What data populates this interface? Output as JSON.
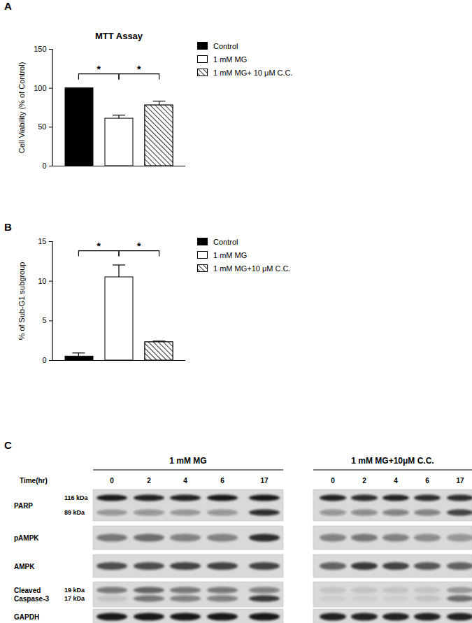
{
  "panel_labels": [
    "A",
    "B",
    "C"
  ],
  "chart_data": [
    {
      "type": "bar",
      "title": "MTT Assay",
      "ylabel": "Cell Viability (% of Control)",
      "categories": [
        "Control",
        "1 mM MG",
        "1 mM MG+ 10 μM C.C."
      ],
      "values": [
        100,
        61,
        78
      ],
      "errors": [
        0,
        4,
        5
      ],
      "colors": [
        "#000000",
        "#ffffff",
        "#ffffff"
      ],
      "ylim": [
        0,
        150
      ],
      "yticks": [
        0,
        50,
        100,
        150
      ],
      "legend": "right",
      "tick_labels": "y",
      "annotations": [
        {
          "text": "*",
          "between": [
            "Control",
            "1 mM MG"
          ]
        },
        {
          "text": "*",
          "between": [
            "1 mM MG",
            "1 mM MG+ 10 μM C.C."
          ]
        }
      ]
    },
    {
      "type": "bar",
      "ylabel": "% of Sub-G1 subgroup",
      "categories": [
        "Control",
        "1 mM MG",
        "1 mM MG+10 μM C.C."
      ],
      "values": [
        0.5,
        10.5,
        2.3
      ],
      "errors": [
        0.4,
        1.5,
        0.1
      ],
      "colors": [
        "#000000",
        "#ffffff",
        "#ffffff"
      ],
      "ylim": [
        0,
        15
      ],
      "yticks": [
        0,
        5,
        10,
        15
      ],
      "legend": "right",
      "tick_labels": "y",
      "annotations": [
        {
          "text": "*",
          "between": [
            "Control",
            "1 mM MG"
          ]
        },
        {
          "text": "*",
          "between": [
            "1 mM MG",
            "1 mM MG+10 μM C.C."
          ]
        }
      ]
    }
  ],
  "blot": {
    "time_label": "Time(hr)",
    "groups": [
      {
        "title": "1 mM MG",
        "times": [
          0,
          2,
          4,
          6,
          17
        ]
      },
      {
        "title": "1 mM MG+10μM C.C.",
        "times": [
          0,
          2,
          4,
          6,
          17
        ]
      }
    ],
    "rows": [
      {
        "name": "PARP",
        "bands": [
          {
            "label": "116 kDa",
            "intensity": [
              [
                0.95,
                0.9,
                0.9,
                0.95,
                0.95
              ],
              [
                0.9,
                0.85,
                0.9,
                0.85,
                0.85
              ]
            ]
          },
          {
            "label": "89 kDa",
            "intensity": [
              [
                0.3,
                0.35,
                0.3,
                0.35,
                0.85
              ],
              [
                0.35,
                0.4,
                0.45,
                0.45,
                0.75
              ]
            ]
          }
        ]
      },
      {
        "name": "pAMPK",
        "bands": [
          {
            "intensity": [
              [
                0.5,
                0.55,
                0.45,
                0.45,
                0.85
              ],
              [
                0.45,
                0.5,
                0.45,
                0.4,
                0.35
              ]
            ]
          }
        ]
      },
      {
        "name": "AMPK",
        "bands": [
          {
            "intensity": [
              [
                0.7,
                0.7,
                0.75,
                0.75,
                0.75
              ],
              [
                0.6,
                0.8,
                0.75,
                0.65,
                0.6
              ]
            ]
          }
        ]
      },
      {
        "name": "Cleaved Caspase-3",
        "bands": [
          {
            "label": "19 kDa",
            "intensity": [
              [
                0.5,
                0.6,
                0.5,
                0.5,
                0.45
              ],
              [
                0.1,
                0.1,
                0.1,
                0.1,
                0.3
              ]
            ]
          },
          {
            "label": "17 kDa",
            "intensity": [
              [
                0.1,
                0.5,
                0.45,
                0.45,
                0.8
              ],
              [
                0.05,
                0.05,
                0.05,
                0.1,
                0.55
              ]
            ]
          }
        ]
      },
      {
        "name": "GAPDH",
        "bands": [
          {
            "intensity": [
              [
                0.95,
                0.95,
                0.95,
                0.95,
                0.95
              ],
              [
                0.9,
                0.9,
                0.9,
                0.9,
                0.9
              ]
            ]
          }
        ]
      }
    ]
  }
}
